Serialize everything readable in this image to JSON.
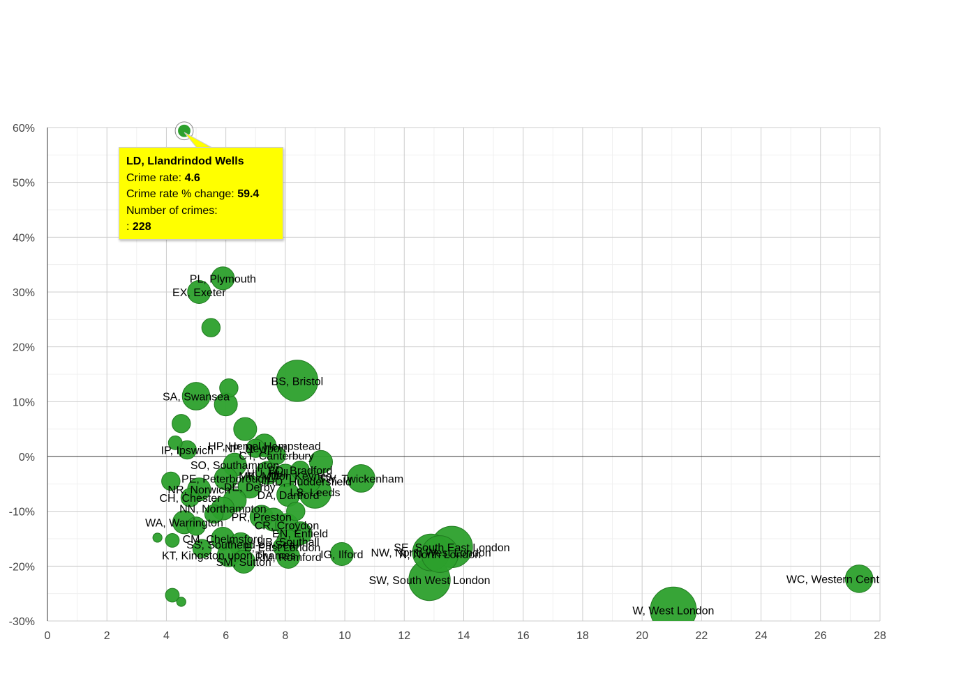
{
  "colors": {
    "bubble": "#2ca02c",
    "bubble_stroke": "#1f7a1f",
    "tooltip_bg": "#ffff00"
  },
  "tooltip": {
    "title": "LD, Llandrindod Wells",
    "rate_label": "Crime rate:",
    "rate_value": "4.6",
    "change_label": "Crime rate % change:",
    "change_value": "59.4",
    "count_label": "Number of crimes:",
    "count_prefix": ":",
    "count_value": "228"
  },
  "chart_data": {
    "type": "scatter",
    "xlabel": "",
    "ylabel": "",
    "xlim": [
      0,
      28
    ],
    "ylim": [
      -30,
      60
    ],
    "x_ticks": [
      "0",
      "2",
      "4",
      "6",
      "8",
      "10",
      "12",
      "14",
      "16",
      "18",
      "20",
      "22",
      "24",
      "26",
      "28"
    ],
    "y_ticks": [
      "60%",
      "50%",
      "40%",
      "30%",
      "20%",
      "10%",
      "0%",
      "-10%",
      "-20%",
      "-30%"
    ],
    "grid": true,
    "points": [
      {
        "label": "LD, Llandrindod Wells",
        "x": 4.6,
        "y": 59.4,
        "size": 3
      },
      {
        "label": "PL, Plymouth",
        "x": 5.9,
        "y": 32.5,
        "size": 5
      },
      {
        "label": "EX, Exeter",
        "x": 5.1,
        "y": 30.0,
        "size": 5
      },
      {
        "label": "",
        "x": 5.5,
        "y": 23.5,
        "size": 4
      },
      {
        "label": "BS, Bristol",
        "x": 8.4,
        "y": 13.8,
        "size": 9
      },
      {
        "label": "",
        "x": 6.1,
        "y": 12.5,
        "size": 4
      },
      {
        "label": "SA, Swansea",
        "x": 5.0,
        "y": 11.0,
        "size": 6
      },
      {
        "label": "",
        "x": 6.0,
        "y": 9.5,
        "size": 5
      },
      {
        "label": "",
        "x": 4.5,
        "y": 6.0,
        "size": 4
      },
      {
        "label": "",
        "x": 6.65,
        "y": 5.0,
        "size": 5
      },
      {
        "label": "",
        "x": 4.3,
        "y": 2.5,
        "size": 3
      },
      {
        "label": "HP, Hemel Hempstead",
        "x": 7.3,
        "y": 2.0,
        "size": 5
      },
      {
        "label": "NP, Newport",
        "x": 7.0,
        "y": 1.5,
        "size": 4
      },
      {
        "label": "CT, Canterbury",
        "x": 7.7,
        "y": 0.2,
        "size": 4
      },
      {
        "label": "IP, Ipswich",
        "x": 4.7,
        "y": 1.2,
        "size": 4
      },
      {
        "label": "",
        "x": 9.2,
        "y": -1.0,
        "size": 5
      },
      {
        "label": "SO, Southampton",
        "x": 6.3,
        "y": -1.5,
        "size": 5
      },
      {
        "label": "BD, Bradford",
        "x": 8.5,
        "y": -2.5,
        "size": 4
      },
      {
        "label": "TW, Twickenham",
        "x": 10.55,
        "y": -4.0,
        "size": 6
      },
      {
        "label": "MK, Milton Keynes",
        "x": 8.0,
        "y": -3.5,
        "size": 5
      },
      {
        "label": "HU, Hull",
        "x": 7.4,
        "y": -3.0,
        "size": 5
      },
      {
        "label": "PE, Peterborough",
        "x": 6.0,
        "y": -4.0,
        "size": 5
      },
      {
        "label": "HD, Huddersfield",
        "x": 8.8,
        "y": -4.5,
        "size": 5
      },
      {
        "label": "",
        "x": 4.15,
        "y": -4.5,
        "size": 4
      },
      {
        "label": "DE, Derby",
        "x": 6.8,
        "y": -5.5,
        "size": 5
      },
      {
        "label": "NR, Norwich",
        "x": 5.1,
        "y": -6.0,
        "size": 5
      },
      {
        "label": "LS, Leeds",
        "x": 9.0,
        "y": -6.5,
        "size": 7
      },
      {
        "label": "DA, Dartford",
        "x": 8.1,
        "y": -7.0,
        "size": 5
      },
      {
        "label": "CH, Chester",
        "x": 4.8,
        "y": -7.5,
        "size": 4
      },
      {
        "label": "",
        "x": 6.3,
        "y": -8.0,
        "size": 5
      },
      {
        "label": "NN, Northampton",
        "x": 5.9,
        "y": -9.5,
        "size": 5
      },
      {
        "label": "",
        "x": 5.6,
        "y": -10.5,
        "size": 4
      },
      {
        "label": "",
        "x": 8.35,
        "y": -10.0,
        "size": 4
      },
      {
        "label": "PR, Preston",
        "x": 7.2,
        "y": -11.0,
        "size": 5
      },
      {
        "label": "WA, Warrington",
        "x": 4.6,
        "y": -12.0,
        "size": 5
      },
      {
        "label": "",
        "x": 7.6,
        "y": -11.5,
        "size": 5
      },
      {
        "label": "CR, Croydon",
        "x": 8.05,
        "y": -12.5,
        "size": 5
      },
      {
        "label": "",
        "x": 5.0,
        "y": -12.7,
        "size": 4
      },
      {
        "label": "EN, Enfield",
        "x": 8.5,
        "y": -14.0,
        "size": 5
      },
      {
        "label": "",
        "x": 3.7,
        "y": -14.8,
        "size": 2
      },
      {
        "label": "CM, Chelmsford",
        "x": 5.9,
        "y": -15.0,
        "size": 5
      },
      {
        "label": "UB, Southall",
        "x": 8.1,
        "y": -15.5,
        "size": 5
      },
      {
        "label": "",
        "x": 4.2,
        "y": -15.3,
        "size": 3
      },
      {
        "label": "SE, South East London",
        "x": 13.6,
        "y": -16.5,
        "size": 9
      },
      {
        "label": "SS, Southend-on-Sea",
        "x": 6.5,
        "y": -16.0,
        "size": 5
      },
      {
        "label": "E, East London",
        "x": 7.9,
        "y": -16.5,
        "size": 4
      },
      {
        "label": "",
        "x": 5.2,
        "y": -16.8,
        "size": 4
      },
      {
        "label": "NW, North West London",
        "x": 12.9,
        "y": -17.5,
        "size": 8
      },
      {
        "label": "N, North London",
        "x": 13.2,
        "y": -17.8,
        "size": 8
      },
      {
        "label": "IG, Ilford",
        "x": 9.9,
        "y": -17.8,
        "size": 5
      },
      {
        "label": "KT, Kingston upon Thames",
        "x": 6.1,
        "y": -18.0,
        "size": 5
      },
      {
        "label": "RM, Romford",
        "x": 8.1,
        "y": -18.3,
        "size": 5
      },
      {
        "label": "SM, Sutton",
        "x": 6.6,
        "y": -19.2,
        "size": 5
      },
      {
        "label": "SW, South West London",
        "x": 12.85,
        "y": -22.5,
        "size": 9
      },
      {
        "label": "WC, Western Central London",
        "x": 27.3,
        "y": -22.3,
        "size": 6
      },
      {
        "label": "",
        "x": 4.2,
        "y": -25.3,
        "size": 3
      },
      {
        "label": "",
        "x": 4.5,
        "y": -26.5,
        "size": 2
      },
      {
        "label": "W, West London",
        "x": 21.05,
        "y": -28.0,
        "size": 10
      }
    ]
  }
}
